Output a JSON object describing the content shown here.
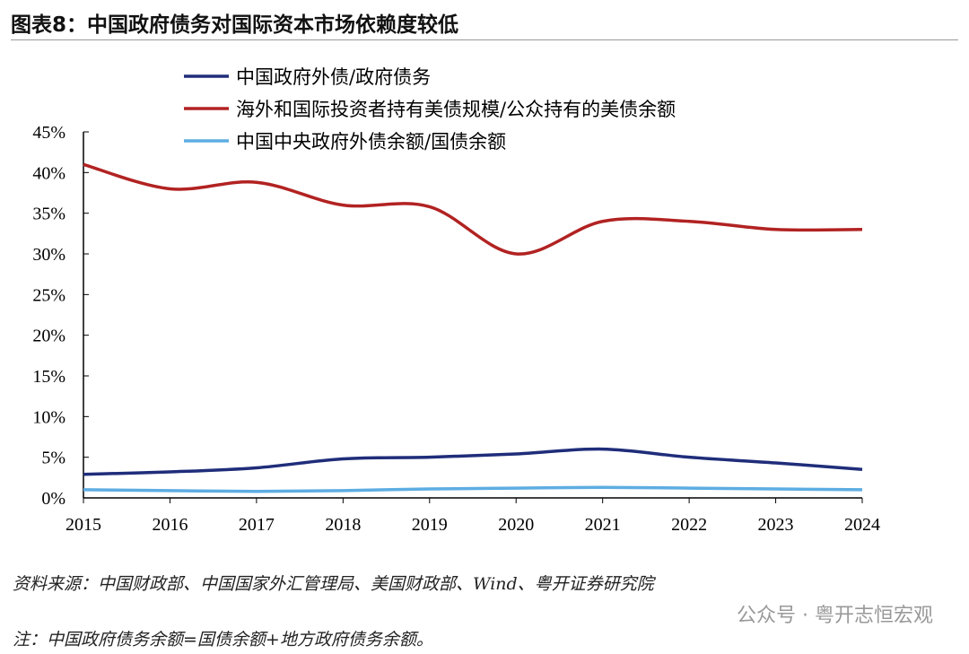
{
  "title": "图表8：中国政府债务对国际资本市场依赖度较低",
  "chart_data": {
    "type": "line",
    "title": "图表8：中国政府债务对国际资本市场依赖度较低",
    "x": [
      "2015",
      "2016",
      "2017",
      "2018",
      "2019",
      "2020",
      "2021",
      "2022",
      "2023",
      "2024"
    ],
    "ylim": [
      0,
      45
    ],
    "yticks": [
      "0%",
      "5%",
      "10%",
      "15%",
      "20%",
      "25%",
      "30%",
      "35%",
      "40%",
      "45%"
    ],
    "legend_position": "top",
    "series": [
      {
        "name": "中国政府外债/政府债务",
        "color": "#1f2d7a",
        "values": [
          2.9,
          3.2,
          3.7,
          4.8,
          5.0,
          5.4,
          6.0,
          5.0,
          4.3,
          3.5
        ]
      },
      {
        "name": "海外和国际投资者持有美债规模/公众持有的美债余额",
        "color": "#b22222",
        "values": [
          41,
          38,
          38.8,
          36,
          35.8,
          30,
          34,
          34,
          33,
          33
        ]
      },
      {
        "name": "中国中央政府外债余额/国债余额",
        "color": "#5dade2",
        "values": [
          1.0,
          0.9,
          0.8,
          0.9,
          1.1,
          1.2,
          1.3,
          1.2,
          1.1,
          1.0
        ]
      }
    ]
  },
  "source": "资料来源：中国财政部、中国国家外汇管理局、美国财政部、Wind、粤开证券研究院",
  "note": "注：中国政府债务余额=国债余额+地方政府债务余额。",
  "watermark": "公众号 · 粤开志恒宏观"
}
